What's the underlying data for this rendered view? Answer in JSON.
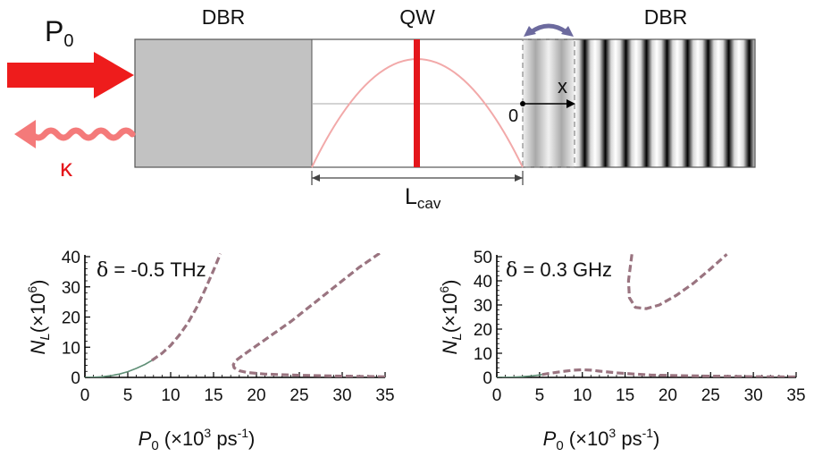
{
  "schematic": {
    "left_mirror_label": "DBR",
    "center_label": "QW",
    "right_mirror_label": "DBR",
    "pump_label": "P",
    "pump_sub": "0",
    "loss_label": "κ",
    "length_label": "L",
    "length_sub": "cav",
    "origin_label": "0",
    "axis_label": "x",
    "colors": {
      "pump": "#ee1c1c",
      "field": "#f2a9a9",
      "qw": "#e4161b",
      "arrow": "#6c6a9e"
    }
  },
  "chart_data": [
    {
      "type": "line",
      "annotation_prefix": "δ",
      "annotation_eq": " = ",
      "annotation_value": "-0.5 THz",
      "ylabel_main": "N",
      "ylabel_sub": "L",
      "ylabel_unit": "(×10",
      "ylabel_exp": "6",
      "ylabel_close": ")",
      "xlabel_main": "P",
      "xlabel_sub": "0",
      "xlabel_unit": "(×10",
      "xlabel_exp": "3",
      "xlabel_tail": " ps",
      "xlabel_exp2": "-1",
      "xlabel_close": ")",
      "xlim": [
        0,
        35
      ],
      "ylim": [
        0,
        40
      ],
      "xticks": [
        "0",
        "5",
        "10",
        "15",
        "20",
        "25",
        "30",
        "35"
      ],
      "yticks": [
        "0",
        "10",
        "20",
        "30",
        "40"
      ],
      "series": [
        {
          "style": "solid",
          "color": "#5f8f76",
          "x": [
            0,
            1,
            2,
            3,
            4,
            5,
            6,
            7,
            7.8
          ],
          "y": [
            0,
            0.05,
            0.2,
            0.55,
            1.1,
            1.9,
            3.0,
            4.3,
            5.6
          ]
        },
        {
          "style": "dashed",
          "color": "#9a7480",
          "x": [
            7.8,
            9,
            10,
            11,
            12,
            13,
            14,
            15,
            15.8
          ],
          "y": [
            5.6,
            8.0,
            10.6,
            14.0,
            18.0,
            23.0,
            29.0,
            35.5,
            41
          ]
        },
        {
          "style": "dashed",
          "color": "#9a7480",
          "x": [
            35,
            30,
            25,
            21,
            19,
            18,
            17.4,
            17.3,
            17.6,
            18.5,
            20,
            22,
            24,
            26,
            28,
            30,
            32,
            34.8
          ],
          "y": [
            0.2,
            0.4,
            0.7,
            1.1,
            1.6,
            2.2,
            3.2,
            4.2,
            5.6,
            7.5,
            10.5,
            14.5,
            18.5,
            23.0,
            27.5,
            32.0,
            36.5,
            42
          ]
        }
      ]
    },
    {
      "type": "line",
      "annotation_prefix": "δ",
      "annotation_eq": " = ",
      "annotation_value": "0.3 GHz",
      "ylabel_main": "N",
      "ylabel_sub": "L",
      "ylabel_unit": "(×10",
      "ylabel_exp": "6",
      "ylabel_close": ")",
      "xlabel_main": "P",
      "xlabel_sub": "0",
      "xlabel_unit": "(×10",
      "xlabel_exp": "3",
      "xlabel_tail": " ps",
      "xlabel_exp2": "-1",
      "xlabel_close": ")",
      "xlim": [
        0,
        35
      ],
      "ylim": [
        0,
        50
      ],
      "xticks": [
        "0",
        "5",
        "10",
        "15",
        "20",
        "25",
        "30",
        "35"
      ],
      "yticks": [
        "0",
        "10",
        "20",
        "30",
        "40",
        "50"
      ],
      "series": [
        {
          "style": "solid",
          "color": "#5f8f76",
          "x": [
            0,
            1,
            2,
            3,
            4,
            5,
            5.3
          ],
          "y": [
            0,
            0.03,
            0.1,
            0.3,
            0.6,
            1.0,
            1.2
          ]
        },
        {
          "style": "dashed",
          "color": "#9a7480",
          "x": [
            5.3,
            6,
            7,
            8,
            9,
            10,
            11,
            12,
            14,
            16,
            18,
            20,
            25,
            30,
            35
          ],
          "y": [
            1.2,
            1.6,
            2.1,
            2.6,
            3.0,
            3.2,
            3.0,
            2.6,
            1.9,
            1.4,
            1.0,
            0.8,
            0.5,
            0.3,
            0.2
          ]
        },
        {
          "style": "dashed",
          "color": "#9a7480",
          "x": [
            15.8,
            15.4,
            15.5,
            16.2,
            17.5,
            19,
            21,
            23,
            25,
            26.9
          ],
          "y": [
            51,
            40,
            33,
            29,
            28.5,
            30,
            34,
            39,
            45,
            51
          ]
        }
      ]
    }
  ]
}
